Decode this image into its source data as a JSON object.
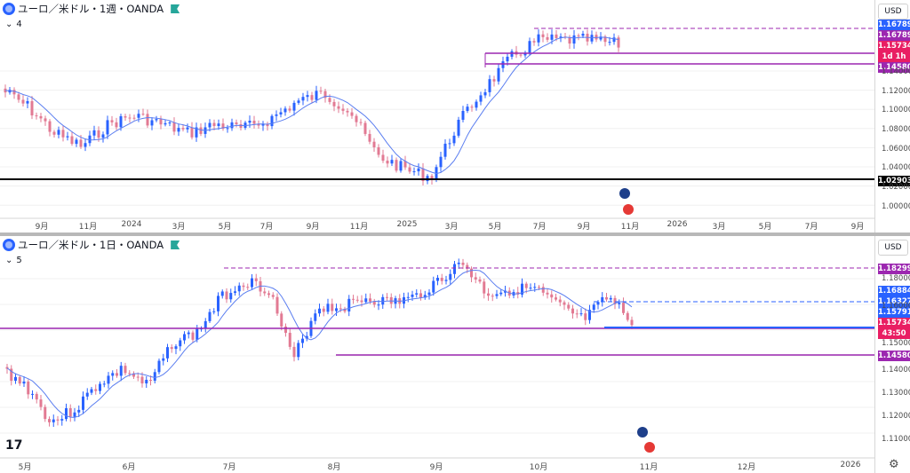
{
  "top": {
    "title": "ユーロ／米ドル・1週・OANDA",
    "indicator": "4",
    "currency": "USD",
    "ticks_x": [
      "9月",
      "11月",
      "2024",
      "3月",
      "5月",
      "7月",
      "9月",
      "11月",
      "2025",
      "3月",
      "5月",
      "7月",
      "9月",
      "11月",
      "2026",
      "3月",
      "5月",
      "7月",
      "9月"
    ],
    "price_gray": [
      "1.14000",
      "1.12000",
      "1.10000",
      "1.08000",
      "1.06000",
      "1.04000",
      "1.02000",
      "1.00000"
    ],
    "labels": [
      {
        "text": "1.16789",
        "color": "#2962ff"
      },
      {
        "text": "1.16789",
        "color": "#9c27b0"
      },
      {
        "text": "1.15734",
        "color": "#e91e63"
      },
      {
        "text": "1d 1h",
        "color": "#e91e63"
      },
      {
        "text": "1.14580",
        "color": "#9c27b0"
      },
      {
        "text": "1.02903",
        "color": "#000000"
      }
    ]
  },
  "bottom": {
    "title": "ユーロ／米ドル・1日・OANDA",
    "indicator": "5",
    "currency": "USD",
    "ticks_x": [
      "5月",
      "6月",
      "7月",
      "8月",
      "9月",
      "10月",
      "11月",
      "12月",
      "2026"
    ],
    "price_gray": [
      "1.18000",
      "1.16000",
      "1.15000",
      "1.14000",
      "1.13000",
      "1.12000",
      "1.11000"
    ],
    "labels": [
      {
        "text": "1.18299",
        "color": "#9c27b0"
      },
      {
        "text": "1.16884",
        "color": "#2962ff"
      },
      {
        "text": "1.16327",
        "color": "#2962ff"
      },
      {
        "text": "1.15791",
        "color": "#2962ff"
      },
      {
        "text": "1.15734",
        "color": "#e91e63"
      },
      {
        "text": "43:50",
        "color": "#e91e63"
      },
      {
        "text": "1.14580",
        "color": "#9c27b0"
      }
    ]
  },
  "colors": {
    "up": "#2962ff",
    "down": "#e27a93",
    "ma": "#5b7ef0",
    "level": "#9c27b0",
    "black": "#000000"
  },
  "icons": [
    "currency-pair-icon",
    "chevron-down-icon",
    "tradingview-logo-icon",
    "settings-gear-icon"
  ]
}
